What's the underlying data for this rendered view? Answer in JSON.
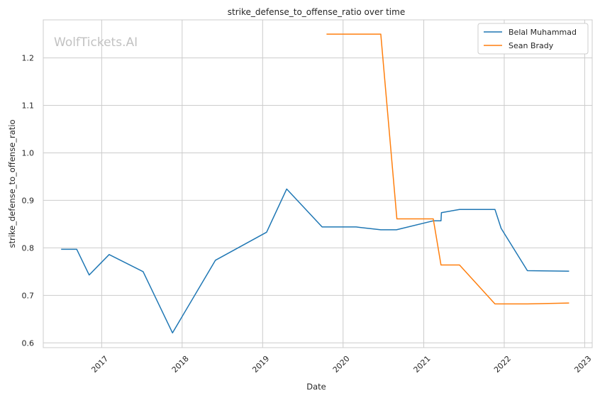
{
  "chart_data": {
    "type": "line",
    "title": "strike_defense_to_offense_ratio over time",
    "xlabel": "Date",
    "ylabel": "strike_defense_to_offense_ratio",
    "watermark": "WolfTickets.AI",
    "x_ticks": [
      "2017",
      "2018",
      "2019",
      "2020",
      "2021",
      "2022",
      "2023"
    ],
    "y_ticks": [
      "0.6",
      "0.7",
      "0.8",
      "0.9",
      "1.0",
      "1.1",
      "1.2"
    ],
    "xlim": [
      "2016-04-11",
      "2023-02-04"
    ],
    "ylim": [
      0.59,
      1.28
    ],
    "grid": true,
    "legend_position": "top-right",
    "series": [
      {
        "name": "Belal Muhammad",
        "color": "#1f77b4",
        "points": [
          [
            "2016-07-01",
            0.797
          ],
          [
            "2016-09-10",
            0.797
          ],
          [
            "2016-11-05",
            0.743
          ],
          [
            "2017-02-04",
            0.786
          ],
          [
            "2017-07-08",
            0.75
          ],
          [
            "2017-11-18",
            0.621
          ],
          [
            "2018-06-01",
            0.774
          ],
          [
            "2019-01-19",
            0.833
          ],
          [
            "2019-04-20",
            0.924
          ],
          [
            "2019-09-28",
            0.844
          ],
          [
            "2020-02-29",
            0.844
          ],
          [
            "2020-06-20",
            0.838
          ],
          [
            "2020-08-30",
            0.838
          ],
          [
            "2021-02-14",
            0.857
          ],
          [
            "2021-03-20",
            0.857
          ],
          [
            "2021-03-22",
            0.874
          ],
          [
            "2021-06-12",
            0.881
          ],
          [
            "2021-11-20",
            0.881
          ],
          [
            "2021-12-18",
            0.841
          ],
          [
            "2022-04-16",
            0.752
          ],
          [
            "2022-10-22",
            0.751
          ]
        ]
      },
      {
        "name": "Sean Brady",
        "color": "#ff7f0e",
        "points": [
          [
            "2019-10-18",
            1.25
          ],
          [
            "2020-06-20",
            1.25
          ],
          [
            "2020-09-01",
            0.861
          ],
          [
            "2021-02-13",
            0.861
          ],
          [
            "2021-03-20",
            0.764
          ],
          [
            "2021-06-12",
            0.764
          ],
          [
            "2021-11-20",
            0.682
          ],
          [
            "2022-04-16",
            0.682
          ],
          [
            "2022-10-22",
            0.684
          ]
        ]
      }
    ]
  }
}
